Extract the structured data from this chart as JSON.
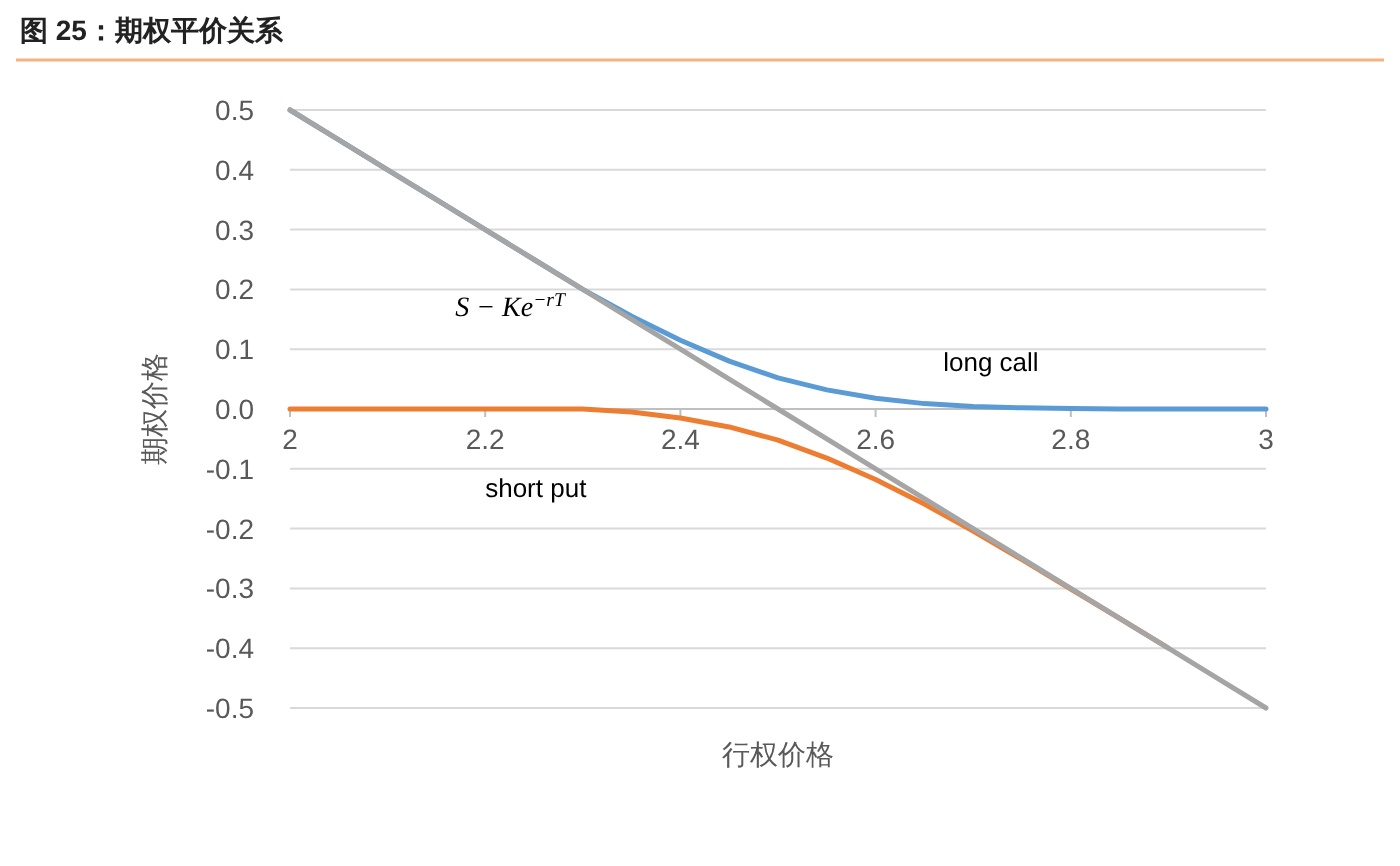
{
  "chart_data": {
    "type": "line",
    "title": "图 25：期权平价关系",
    "xlabel": "行权价格",
    "ylabel": "期权价格",
    "x": [
      2,
      2.05,
      2.1,
      2.15,
      2.2,
      2.25,
      2.3,
      2.35,
      2.4,
      2.45,
      2.5,
      2.55,
      2.6,
      2.65,
      2.7,
      2.75,
      2.8,
      2.85,
      2.9,
      2.95,
      3
    ],
    "series": [
      {
        "name": "long call",
        "color": "#5b9bd5",
        "values": [
          0.5,
          0.45,
          0.4,
          0.35,
          0.3,
          0.25,
          0.2,
          0.155,
          0.115,
          0.08,
          0.052,
          0.032,
          0.018,
          0.009,
          0.004,
          0.002,
          0.001,
          0,
          0,
          0,
          0
        ]
      },
      {
        "name": "short put",
        "color": "#ed7d31",
        "values": [
          0,
          0,
          0,
          0,
          0,
          0,
          0,
          -0.005,
          -0.015,
          -0.03,
          -0.052,
          -0.082,
          -0.118,
          -0.159,
          -0.204,
          -0.252,
          -0.301,
          -0.35,
          -0.4,
          null,
          null
        ]
      },
      {
        "name": "S − Ke$^{−rT}$",
        "color": "#a5a5a5",
        "values": [
          0.5,
          0.45,
          0.4,
          0.35,
          0.3,
          0.25,
          0.2,
          0.15,
          0.1,
          0.05,
          0,
          -0.05,
          -0.1,
          -0.15,
          -0.2,
          -0.25,
          -0.3,
          -0.35,
          -0.4,
          -0.45,
          -0.5
        ]
      }
    ],
    "xlim": [
      2,
      3
    ],
    "xticks": [
      2,
      2.2,
      2.4,
      2.6,
      2.8,
      3
    ],
    "ylim": [
      -0.5,
      0.5
    ],
    "yticks": [
      {
        "value": -0.5,
        "label": "-0.5"
      },
      {
        "value": -0.4,
        "label": "-0.4"
      },
      {
        "value": -0.3,
        "label": "-0.3"
      },
      {
        "value": -0.2,
        "label": "-0.2"
      },
      {
        "value": -0.1,
        "label": "-0.1"
      },
      {
        "value": 0,
        "label": "0.0"
      },
      {
        "value": 0.1,
        "label": "0.1"
      },
      {
        "value": 0.2,
        "label": "0.2"
      },
      {
        "value": 0.3,
        "label": "0.3"
      },
      {
        "value": 0.4,
        "label": "0.4"
      },
      {
        "value": 0.5,
        "label": "0.5"
      }
    ],
    "grid": "y",
    "legend": false,
    "marker": "none",
    "line_style": "solid"
  }
}
